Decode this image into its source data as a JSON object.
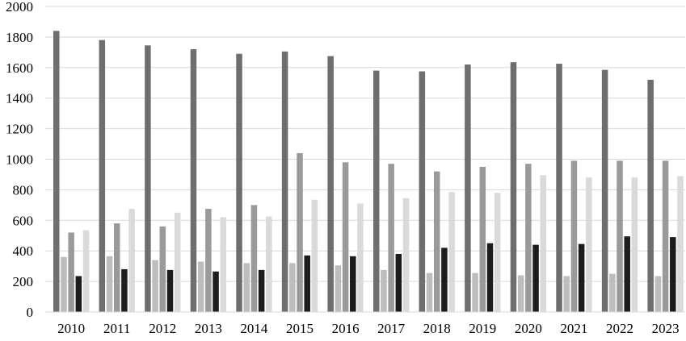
{
  "chart_data": {
    "type": "bar",
    "title": "",
    "xlabel": "",
    "ylabel": "",
    "ylim": [
      0,
      2000
    ],
    "y_ticks": [
      "0",
      "200",
      "400",
      "600",
      "800",
      "1000",
      "1200",
      "1400",
      "1600",
      "1800",
      "2000"
    ],
    "grid": "horizontal",
    "legend": "none",
    "categories": [
      "2010",
      "2011",
      "2012",
      "2013",
      "2014",
      "2015",
      "2016",
      "2017",
      "2018",
      "2019",
      "2020",
      "2021",
      "2022",
      "2023"
    ],
    "series": [
      {
        "color": "#6e6e6e",
        "values": [
          1840,
          1780,
          1745,
          1720,
          1690,
          1705,
          1675,
          1580,
          1575,
          1620,
          1635,
          1625,
          1585,
          1520
        ]
      },
      {
        "color": "#bdbdbd",
        "values": [
          360,
          365,
          340,
          330,
          320,
          320,
          305,
          275,
          255,
          255,
          240,
          235,
          250,
          235
        ]
      },
      {
        "color": "#9a9a9a",
        "values": [
          520,
          580,
          560,
          675,
          700,
          1040,
          980,
          970,
          920,
          950,
          970,
          990,
          990,
          990
        ]
      },
      {
        "color": "#1c1c1c",
        "values": [
          235,
          280,
          275,
          265,
          275,
          370,
          365,
          380,
          420,
          450,
          440,
          445,
          495,
          490
        ]
      },
      {
        "color": "#dadada",
        "values": [
          535,
          675,
          650,
          620,
          625,
          735,
          710,
          745,
          785,
          780,
          895,
          880,
          880,
          890
        ]
      }
    ]
  }
}
